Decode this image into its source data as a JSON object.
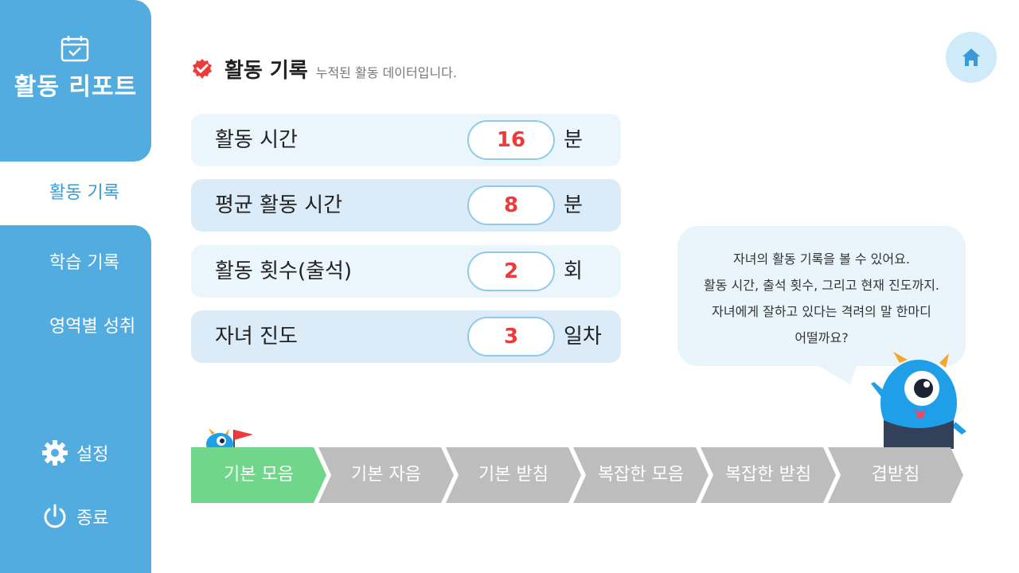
{
  "sidebar": {
    "title": "활동 리포트",
    "items": [
      {
        "label": "활동 기록",
        "active": true
      },
      {
        "label": "학습 기록",
        "active": false
      },
      {
        "label": "영역별 성취",
        "active": false
      }
    ],
    "settings_label": "설정",
    "exit_label": "종료"
  },
  "header": {
    "title": "활동 기록",
    "subtitle": "누적된 활동 데이터입니다."
  },
  "stats": [
    {
      "label": "활동 시간",
      "value": "16",
      "unit": "분"
    },
    {
      "label": "평균 활동 시간",
      "value": "8",
      "unit": "분"
    },
    {
      "label": "활동 횟수(출석)",
      "value": "2",
      "unit": "회"
    },
    {
      "label": "자녀 진도",
      "value": "3",
      "unit": "일차"
    }
  ],
  "bubble": {
    "lines": [
      "자녀의 활동 기록을 볼 수 있어요.",
      "활동 시간, 출석 횟수, 그리고 현재 진도까지.",
      "자녀에게 잘하고 있다는 격려의 말 한마디",
      "어떨까요?"
    ]
  },
  "progress": {
    "steps": [
      {
        "label": "기본 모음",
        "done": true
      },
      {
        "label": "기본 자음",
        "done": false
      },
      {
        "label": "기본 받침",
        "done": false
      },
      {
        "label": "복잡한 모음",
        "done": false
      },
      {
        "label": "복잡한 받침",
        "done": false
      },
      {
        "label": "겹받침",
        "done": false
      }
    ]
  },
  "colors": {
    "sidebar": "#52ace0",
    "accent_red": "#ee3a3a",
    "step_done": "#6fd68a",
    "step_todo": "#bdbdbd"
  }
}
